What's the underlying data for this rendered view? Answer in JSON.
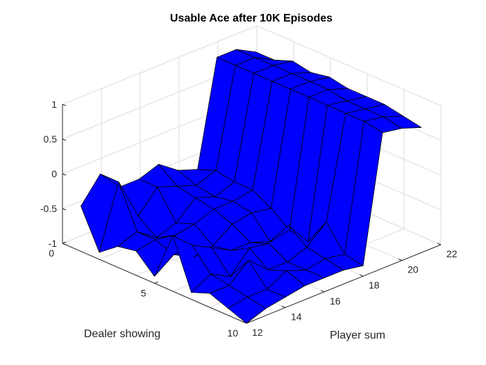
{
  "chart_data": {
    "type": "surface",
    "title": "Usable Ace after 10K Episodes",
    "xlabel": "Player sum",
    "ylabel": "Dealer showing",
    "zlabel": "",
    "x": [
      12,
      13,
      14,
      15,
      16,
      17,
      18,
      19,
      20,
      21
    ],
    "y": [
      1,
      2,
      3,
      4,
      5,
      6,
      7,
      8,
      9,
      10
    ],
    "z": [
      [
        -0.35,
        0.0,
        -0.3,
        -0.3,
        -0.2,
        -0.4,
        -0.5,
        1.0,
        1.0,
        0.85
      ],
      [
        -0.9,
        0.0,
        -0.6,
        -0.3,
        -0.4,
        -0.5,
        -0.4,
        1.0,
        1.0,
        0.85
      ],
      [
        -0.7,
        -0.6,
        -0.8,
        -0.7,
        -0.45,
        -0.55,
        -0.45,
        1.0,
        1.0,
        0.95
      ],
      [
        -0.65,
        -0.6,
        -0.65,
        -0.6,
        -0.5,
        -0.5,
        -0.45,
        1.0,
        1.0,
        0.9
      ],
      [
        -0.9,
        -0.7,
        -0.85,
        -0.8,
        -0.6,
        -0.55,
        -0.6,
        1.0,
        1.0,
        0.95
      ],
      [
        -0.2,
        -0.45,
        -0.6,
        -0.75,
        -0.75,
        -0.85,
        -0.8,
        1.0,
        1.0,
        0.9
      ],
      [
        -0.9,
        -0.75,
        -0.9,
        -0.6,
        -0.65,
        -0.5,
        -0.85,
        1.0,
        0.95,
        0.9
      ],
      [
        -0.8,
        -0.8,
        -0.55,
        -0.8,
        -0.8,
        -0.7,
        -0.45,
        1.0,
        0.95,
        0.9
      ],
      [
        -0.9,
        -0.85,
        -0.85,
        -0.7,
        -0.8,
        -0.75,
        -0.8,
        1.0,
        0.95,
        0.85
      ],
      [
        -1.0,
        -0.9,
        -0.85,
        -0.8,
        -0.8,
        -0.8,
        -0.85,
        0.95,
        0.9,
        0.8
      ]
    ],
    "xlim": [
      12,
      22
    ],
    "ylim": [
      0,
      10
    ],
    "zlim": [
      -1,
      1
    ],
    "x_ticks": [
      "12",
      "14",
      "16",
      "18",
      "20",
      "22"
    ],
    "y_ticks": [
      "0",
      "5",
      "10"
    ],
    "z_ticks": [
      "-1",
      "-0.5",
      "0",
      "0.5",
      "1"
    ],
    "grid": true,
    "surface_color": "#0000ff",
    "edge_color": "#000000"
  }
}
